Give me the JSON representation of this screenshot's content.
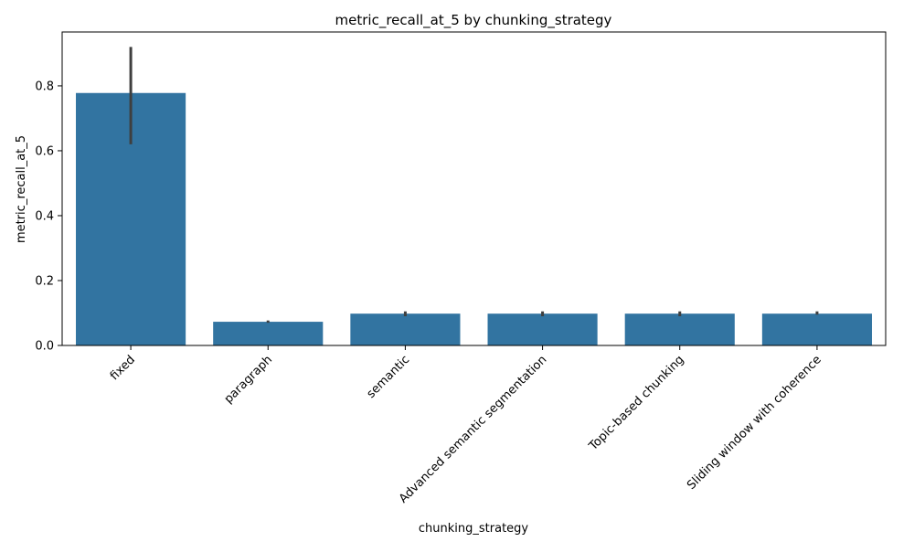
{
  "chart_data": {
    "type": "bar",
    "title": "metric_recall_at_5 by chunking_strategy",
    "xlabel": "chunking_strategy",
    "ylabel": "metric_recall_at_5",
    "categories": [
      "fixed",
      "paragraph",
      "semantic",
      "Advanced semantic segmentation",
      "Topic-based chunking",
      "Sliding window with coherence"
    ],
    "values": [
      0.778,
      0.073,
      0.098,
      0.098,
      0.098,
      0.098
    ],
    "error_low": [
      0.62,
      0.07,
      0.09,
      0.09,
      0.09,
      0.095
    ],
    "error_high": [
      0.92,
      0.077,
      0.105,
      0.105,
      0.105,
      0.105
    ],
    "ylim": [
      0,
      0.966
    ],
    "yticks": [
      0.0,
      0.2,
      0.4,
      0.6,
      0.8
    ],
    "ytick_labels": [
      "0.0",
      "0.2",
      "0.4",
      "0.6",
      "0.8"
    ],
    "grid": false,
    "legend": "none",
    "colors": {
      "bar": "#3274a1",
      "error_bar": "#3f3f3f",
      "axis": "#000000"
    }
  }
}
